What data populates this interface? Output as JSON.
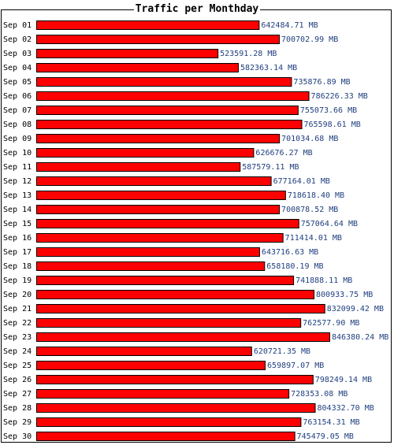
{
  "chart_data": {
    "type": "bar",
    "orientation": "horizontal",
    "title": "Traffic per Monthday",
    "xlabel": "",
    "ylabel": "",
    "unit": "MB",
    "bar_color": "#ff0000",
    "bar_border_color": "#000000",
    "label_color": "#1f3f7f",
    "xlim": [
      0,
      846380.24
    ],
    "grid": false,
    "categories": [
      "Sep 01",
      "Sep 02",
      "Sep 03",
      "Sep 04",
      "Sep 05",
      "Sep 06",
      "Sep 07",
      "Sep 08",
      "Sep 09",
      "Sep 10",
      "Sep 11",
      "Sep 12",
      "Sep 13",
      "Sep 14",
      "Sep 15",
      "Sep 16",
      "Sep 17",
      "Sep 18",
      "Sep 19",
      "Sep 20",
      "Sep 21",
      "Sep 22",
      "Sep 23",
      "Sep 24",
      "Sep 25",
      "Sep 26",
      "Sep 27",
      "Sep 28",
      "Sep 29",
      "Sep 30"
    ],
    "values": [
      642484.71,
      700702.99,
      523591.28,
      582363.14,
      735876.89,
      786226.33,
      755073.66,
      765598.61,
      701034.68,
      626676.27,
      587579.11,
      677164.01,
      718618.4,
      700878.52,
      757064.64,
      711414.01,
      643716.63,
      658180.19,
      741888.11,
      800933.75,
      832099.42,
      762577.9,
      846380.24,
      620721.35,
      659897.07,
      798249.14,
      728353.08,
      804332.7,
      763154.31,
      745479.05
    ],
    "value_labels": [
      "642484.71 MB",
      "700702.99 MB",
      "523591.28 MB",
      "582363.14 MB",
      "735876.89 MB",
      "786226.33 MB",
      "755073.66 MB",
      "765598.61 MB",
      "701034.68 MB",
      "626676.27 MB",
      "587579.11 MB",
      "677164.01 MB",
      "718618.40 MB",
      "700878.52 MB",
      "757064.64 MB",
      "711414.01 MB",
      "643716.63 MB",
      "658180.19 MB",
      "741888.11 MB",
      "800933.75 MB",
      "832099.42 MB",
      "762577.90 MB",
      "846380.24 MB",
      "620721.35 MB",
      "659897.07 MB",
      "798249.14 MB",
      "728353.08 MB",
      "804332.70 MB",
      "763154.31 MB",
      "745479.05 MB"
    ]
  }
}
